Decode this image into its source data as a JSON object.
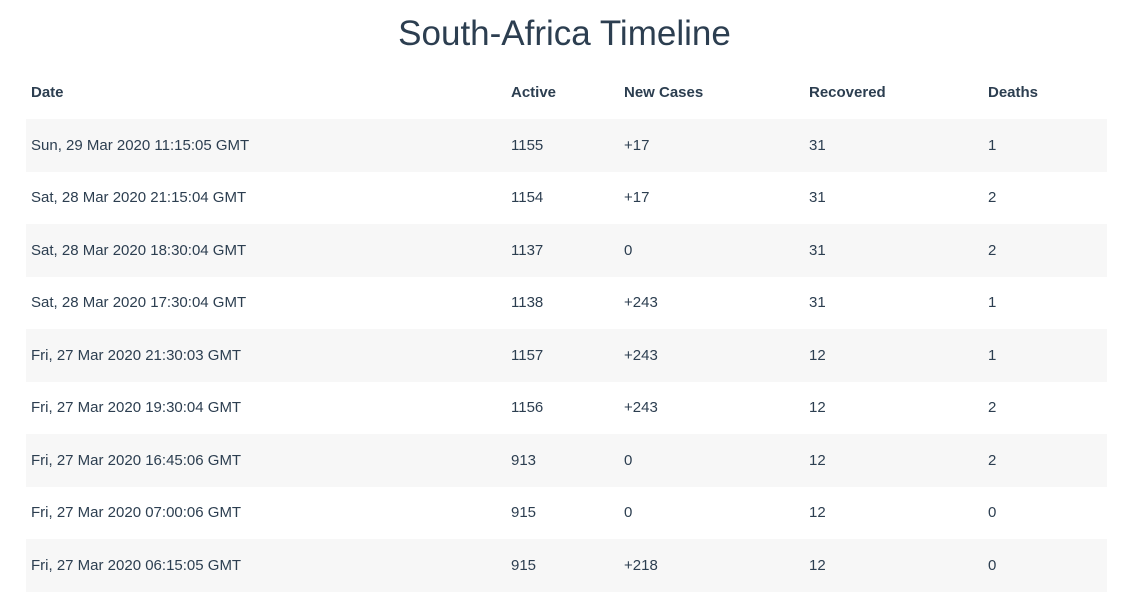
{
  "page": {
    "title": "South-Africa Timeline"
  },
  "table": {
    "headers": {
      "date": "Date",
      "active": "Active",
      "new_cases": "New Cases",
      "recovered": "Recovered",
      "deaths": "Deaths"
    },
    "rows": [
      {
        "date": "Sun, 29 Mar 2020 11:15:05 GMT",
        "active": "1155",
        "new_cases": "+17",
        "recovered": "31",
        "deaths": "1"
      },
      {
        "date": "Sat, 28 Mar 2020 21:15:04 GMT",
        "active": "1154",
        "new_cases": "+17",
        "recovered": "31",
        "deaths": "2"
      },
      {
        "date": "Sat, 28 Mar 2020 18:30:04 GMT",
        "active": "1137",
        "new_cases": "0",
        "recovered": "31",
        "deaths": "2"
      },
      {
        "date": "Sat, 28 Mar 2020 17:30:04 GMT",
        "active": "1138",
        "new_cases": "+243",
        "recovered": "31",
        "deaths": "1"
      },
      {
        "date": "Fri, 27 Mar 2020 21:30:03 GMT",
        "active": "1157",
        "new_cases": "+243",
        "recovered": "12",
        "deaths": "1"
      },
      {
        "date": "Fri, 27 Mar 2020 19:30:04 GMT",
        "active": "1156",
        "new_cases": "+243",
        "recovered": "12",
        "deaths": "2"
      },
      {
        "date": "Fri, 27 Mar 2020 16:45:06 GMT",
        "active": "913",
        "new_cases": "0",
        "recovered": "12",
        "deaths": "2"
      },
      {
        "date": "Fri, 27 Mar 2020 07:00:06 GMT",
        "active": "915",
        "new_cases": "0",
        "recovered": "12",
        "deaths": "0"
      },
      {
        "date": "Fri, 27 Mar 2020 06:15:05 GMT",
        "active": "915",
        "new_cases": "+218",
        "recovered": "12",
        "deaths": "0"
      }
    ]
  },
  "colors": {
    "text": "#2c3e50",
    "stripe": "#f7f7f7",
    "background": "#ffffff"
  }
}
